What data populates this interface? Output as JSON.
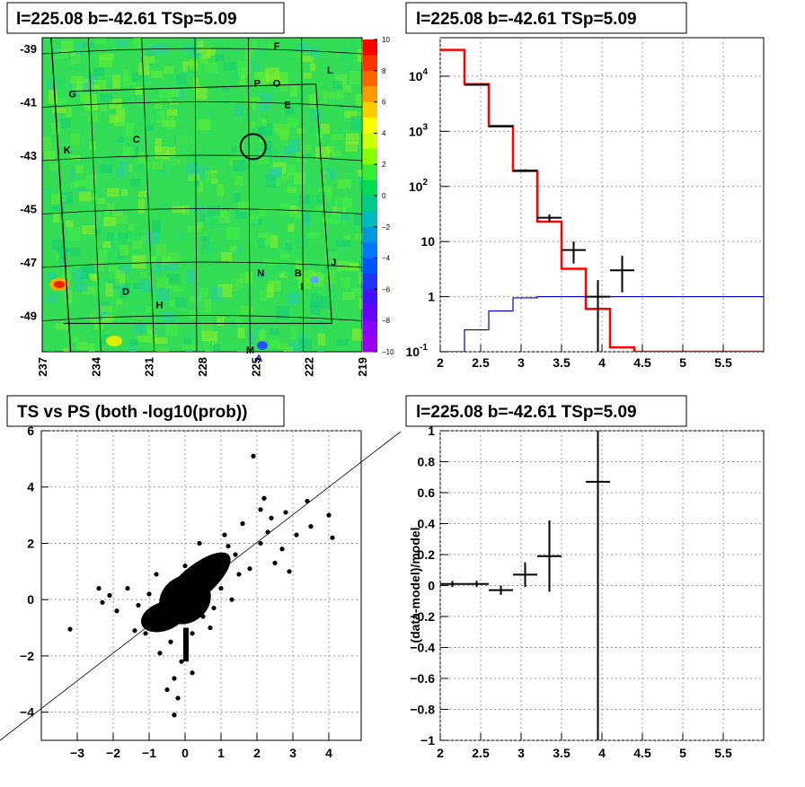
{
  "panels": {
    "map_title": "l=225.08 b=-42.61 TSp=5.09",
    "spectrum_title": "l=225.08 b=-42.61 TSp=5.09",
    "scatter_title": "TS vs PS (both -log10(prob))",
    "residual_title": "l=225.08 b=-42.61 TSp=5.09"
  },
  "colors": {
    "data": "#000000",
    "model": "#ff0000",
    "background_model": "#0000cc",
    "map_field": "#33dd55",
    "grid": "#999999"
  },
  "chart_data": [
    {
      "type": "heatmap",
      "title": "l=225.08 b=-42.61 TSp=5.09",
      "x_ticks": [
        "237",
        "234",
        "231",
        "228",
        "225",
        "222",
        "219"
      ],
      "y_ticks": [
        "-39",
        "-41",
        "-43",
        "-45",
        "-47",
        "-49"
      ],
      "colorbar": {
        "ticks": [
          "10",
          "8",
          "6",
          "4",
          "2",
          "0",
          "−2",
          "−4",
          "−6",
          "−8",
          "−10"
        ],
        "range": [
          -10,
          10
        ]
      },
      "source_labels": [
        {
          "label": "F",
          "l": 223.8,
          "b": -38.9
        },
        {
          "label": "L",
          "l": 220.8,
          "b": -39.8
        },
        {
          "label": "P",
          "l": 224.9,
          "b": -40.3
        },
        {
          "label": "O",
          "l": 223.8,
          "b": -40.3
        },
        {
          "label": "G",
          "l": 235.3,
          "b": -40.7
        },
        {
          "label": "E",
          "l": 223.2,
          "b": -41.1
        },
        {
          "label": "C",
          "l": 231.7,
          "b": -42.4
        },
        {
          "label": "K",
          "l": 235.6,
          "b": -42.8
        },
        {
          "label": "J",
          "l": 220.6,
          "b": -47.0
        },
        {
          "label": "B",
          "l": 222.6,
          "b": -47.4
        },
        {
          "label": "N",
          "l": 224.7,
          "b": -47.4
        },
        {
          "label": "I",
          "l": 222.4,
          "b": -47.9
        },
        {
          "label": "D",
          "l": 232.3,
          "b": -48.1
        },
        {
          "label": "H",
          "l": 230.4,
          "b": -48.6
        },
        {
          "label": "M",
          "l": 225.3,
          "b": -50.3
        },
        {
          "label": "A",
          "l": 224.8,
          "b": -50.6
        }
      ],
      "circle_marker": {
        "l": 225.08,
        "b": -42.61
      }
    },
    {
      "type": "line",
      "title": "l=225.08 b=-42.61 TSp=5.09",
      "log_y": true,
      "xlim": [
        2,
        6
      ],
      "ylim": [
        0.1,
        50000
      ],
      "x_ticks": [
        "2",
        "2.5",
        "3",
        "3.5",
        "4",
        "4.5",
        "5",
        "5.5"
      ],
      "y_ticks": [
        "10^{-1}",
        "1",
        "10",
        "10^{2}",
        "10^{3}",
        "10^{4}"
      ],
      "bin_edges": [
        2.0,
        2.3,
        2.6,
        2.9,
        3.2,
        3.5,
        3.8,
        4.1,
        4.4,
        6.0
      ],
      "series": [
        {
          "role": "model",
          "values": [
            30000,
            7200,
            1250,
            190,
            23,
            3.2,
            0.6,
            0.12,
            0.1
          ]
        },
        {
          "role": "background",
          "values": [
            0.1,
            0.25,
            0.55,
            0.95,
            1.0,
            1.0,
            1.0,
            1.0,
            1.0
          ]
        }
      ],
      "data_points": [
        {
          "x": 2.45,
          "y": 7000,
          "xerr": 0.15,
          "ylo": 6800,
          "yhi": 7200
        },
        {
          "x": 2.75,
          "y": 1230,
          "xerr": 0.15,
          "ylo": 1190,
          "yhi": 1270
        },
        {
          "x": 3.05,
          "y": 195,
          "xerr": 0.15,
          "ylo": 185,
          "yhi": 205
        },
        {
          "x": 3.35,
          "y": 27,
          "xerr": 0.15,
          "ylo": 23,
          "yhi": 31
        },
        {
          "x": 3.65,
          "y": 7,
          "xerr": 0.15,
          "ylo": 4,
          "yhi": 10
        },
        {
          "x": 3.95,
          "y": 1,
          "xerr": 0.15,
          "ylo": 0.1,
          "yhi": 2
        },
        {
          "x": 4.25,
          "y": 3,
          "xerr": 0.15,
          "ylo": 1.2,
          "yhi": 5.5
        }
      ]
    },
    {
      "type": "scatter",
      "title": "TS vs PS (both -log10(prob))",
      "xlim": [
        -4.0,
        4.9
      ],
      "ylim": [
        -5.0,
        6.0
      ],
      "x_ticks": [
        "−3",
        "−2",
        "−1",
        "0",
        "1",
        "2",
        "3",
        "4"
      ],
      "y_ticks": [
        "−4",
        "−2",
        "0",
        "2",
        "4",
        "6"
      ],
      "diagonal": [
        [
          -5.0,
          -5.0
        ],
        [
          6.0,
          6.0
        ]
      ],
      "points": [
        [
          -3.2,
          -1.05
        ],
        [
          -2.4,
          0.4
        ],
        [
          -2.3,
          -0.1
        ],
        [
          -2.1,
          0.15
        ],
        [
          -1.9,
          -0.4
        ],
        [
          1.9,
          5.1
        ],
        [
          2.2,
          3.6
        ],
        [
          2.1,
          3.2
        ],
        [
          2.4,
          2.9
        ],
        [
          3.4,
          3.5
        ],
        [
          4.0,
          3.0
        ],
        [
          4.1,
          2.2
        ],
        [
          -0.3,
          -4.1
        ],
        [
          -0.2,
          -3.5
        ],
        [
          0.2,
          -2.6
        ],
        [
          -0.5,
          -3.2
        ],
        [
          1.4,
          1.6
        ],
        [
          1.1,
          2.3
        ],
        [
          1.6,
          2.7
        ],
        [
          2.1,
          2.0
        ],
        [
          2.7,
          1.8
        ],
        [
          3.1,
          2.3
        ],
        [
          0.9,
          1.5
        ],
        [
          0.6,
          0.8
        ],
        [
          0.3,
          0.5
        ],
        [
          -0.6,
          -0.3
        ],
        [
          -0.9,
          -0.8
        ],
        [
          -1.3,
          -0.2
        ],
        [
          -0.4,
          -1.5
        ],
        [
          0.2,
          -1.2
        ],
        [
          -0.1,
          -2.2
        ],
        [
          0.5,
          -0.6
        ],
        [
          1.0,
          0.4
        ],
        [
          1.5,
          0.9
        ],
        [
          2.5,
          1.3
        ],
        [
          2.9,
          1.0
        ],
        [
          3.5,
          2.6
        ],
        [
          -1.6,
          0.4
        ],
        [
          -0.8,
          0.9
        ],
        [
          0.0,
          1.2
        ],
        [
          -0.2,
          0.0
        ],
        [
          0.1,
          -0.5
        ],
        [
          -1.1,
          -1.2
        ],
        [
          0.8,
          -0.3
        ],
        [
          1.8,
          1.1
        ],
        [
          2.3,
          2.4
        ],
        [
          2.8,
          3.1
        ],
        [
          1.3,
          0.0
        ],
        [
          -0.7,
          -1.9
        ],
        [
          -1.4,
          -1.1
        ],
        [
          0.4,
          2.0
        ],
        [
          0.7,
          -1.0
        ],
        [
          1.2,
          1.9
        ],
        [
          -0.3,
          -2.8
        ],
        [
          -1.0,
          0.2
        ]
      ]
    },
    {
      "type": "line",
      "title": "l=225.08 b=-42.61 TSp=5.09",
      "ylabel": "(data-model)/model",
      "xlim": [
        2,
        6
      ],
      "ylim": [
        -1,
        1
      ],
      "x_ticks": [
        "2",
        "2.5",
        "3",
        "3.5",
        "4",
        "4.5",
        "5",
        "5.5"
      ],
      "y_ticks": [
        "−1",
        "−0.8",
        "−0.6",
        "−0.4",
        "−0.2",
        "0",
        "0.2",
        "0.4",
        "0.6",
        "0.8",
        "1"
      ],
      "points": [
        {
          "x": 2.15,
          "y": 0.01,
          "xerr": 0.15,
          "yerr": 0.02
        },
        {
          "x": 2.45,
          "y": 0.01,
          "xerr": 0.15,
          "yerr": 0.02
        },
        {
          "x": 2.75,
          "y": -0.03,
          "xerr": 0.15,
          "yerr": 0.03
        },
        {
          "x": 3.05,
          "y": 0.07,
          "xerr": 0.15,
          "yerr": 0.08
        },
        {
          "x": 3.35,
          "y": 0.19,
          "xerr": 0.15,
          "yerr": 0.23
        },
        {
          "x": 3.95,
          "y": 0.67,
          "xerr": 0.15,
          "yerr": 1.7
        }
      ]
    }
  ]
}
